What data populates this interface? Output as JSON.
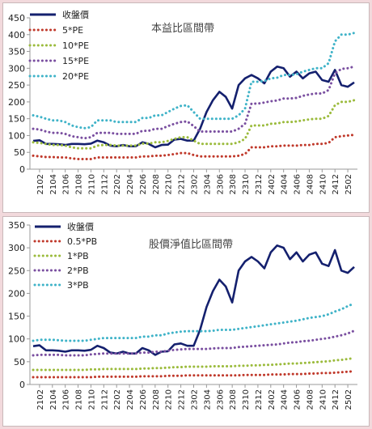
{
  "chart_data": [
    {
      "type": "line",
      "title": "本益比區間帶",
      "xlabel": "",
      "ylabel": "",
      "ylim": [
        0,
        450
      ],
      "yticks": [
        0,
        50,
        100,
        150,
        200,
        250,
        300,
        350,
        400,
        450
      ],
      "x_tick_labels": [
        "2102",
        "2104",
        "2106",
        "2108",
        "2110",
        "2112",
        "2202",
        "2204",
        "2206",
        "2208",
        "2210",
        "2212",
        "2302",
        "2304",
        "2306",
        "2308",
        "2310",
        "2312",
        "2402",
        "2404",
        "2406",
        "2408",
        "2410",
        "2412",
        "2502"
      ],
      "grid": false,
      "legend_position": "top-left",
      "x": [
        "2101",
        "2102",
        "2103",
        "2104",
        "2105",
        "2106",
        "2107",
        "2108",
        "2109",
        "2110",
        "2111",
        "2112",
        "2201",
        "2202",
        "2203",
        "2204",
        "2205",
        "2206",
        "2207",
        "2208",
        "2209",
        "2210",
        "2211",
        "2212",
        "2301",
        "2302",
        "2303",
        "2304",
        "2305",
        "2306",
        "2307",
        "2308",
        "2309",
        "2310",
        "2311",
        "2312",
        "2401",
        "2402",
        "2403",
        "2404",
        "2405",
        "2406",
        "2407",
        "2408",
        "2409",
        "2410",
        "2411",
        "2412",
        "2501",
        "2502",
        "2503"
      ],
      "series": [
        {
          "name": "收盤價",
          "color": "#14206e",
          "style": "solid",
          "values": [
            84,
            86,
            75,
            75,
            74,
            72,
            75,
            75,
            74,
            76,
            85,
            80,
            70,
            68,
            72,
            68,
            68,
            80,
            75,
            65,
            72,
            73,
            88,
            90,
            85,
            85,
            120,
            170,
            205,
            230,
            215,
            180,
            250,
            270,
            280,
            270,
            255,
            290,
            305,
            300,
            275,
            290,
            270,
            285,
            290,
            265,
            260,
            295,
            250,
            245,
            258
          ]
        },
        {
          "name": "5*PE",
          "color": "#c0392b",
          "style": "dotted",
          "values": [
            40,
            38,
            36,
            36,
            35,
            35,
            32,
            30,
            30,
            30,
            35,
            35,
            35,
            35,
            35,
            35,
            35,
            38,
            38,
            40,
            40,
            42,
            45,
            48,
            48,
            42,
            38,
            38,
            38,
            38,
            38,
            38,
            40,
            45,
            65,
            65,
            65,
            68,
            68,
            70,
            70,
            70,
            72,
            72,
            75,
            75,
            78,
            95,
            98,
            100,
            102
          ]
        },
        {
          "name": "10*PE",
          "color": "#9bbb3c",
          "style": "dotted",
          "values": [
            80,
            78,
            75,
            72,
            72,
            70,
            65,
            62,
            62,
            62,
            70,
            72,
            72,
            70,
            70,
            70,
            70,
            76,
            76,
            80,
            80,
            84,
            90,
            95,
            95,
            85,
            75,
            75,
            75,
            75,
            75,
            75,
            80,
            90,
            130,
            130,
            130,
            135,
            136,
            140,
            140,
            142,
            145,
            148,
            150,
            150,
            158,
            190,
            200,
            200,
            205
          ]
        },
        {
          "name": "15*PE",
          "color": "#7a4fa0",
          "style": "dotted",
          "values": [
            120,
            118,
            112,
            108,
            108,
            105,
            98,
            95,
            92,
            95,
            108,
            108,
            108,
            105,
            105,
            105,
            105,
            114,
            114,
            120,
            120,
            128,
            135,
            140,
            142,
            128,
            112,
            112,
            112,
            112,
            112,
            112,
            120,
            135,
            195,
            195,
            198,
            202,
            204,
            210,
            210,
            212,
            218,
            222,
            225,
            225,
            235,
            285,
            298,
            300,
            305
          ]
        },
        {
          "name": "20*PE",
          "color": "#3fb3c8",
          "style": "dotted",
          "values": [
            160,
            156,
            150,
            145,
            145,
            140,
            130,
            125,
            122,
            125,
            145,
            145,
            145,
            140,
            140,
            140,
            140,
            152,
            152,
            160,
            160,
            170,
            180,
            188,
            190,
            170,
            150,
            150,
            150,
            150,
            150,
            150,
            160,
            180,
            260,
            260,
            262,
            270,
            272,
            280,
            280,
            282,
            290,
            295,
            300,
            300,
            315,
            380,
            400,
            400,
            405
          ]
        }
      ]
    },
    {
      "type": "line",
      "title": "股價淨值比區間帶",
      "xlabel": "",
      "ylabel": "",
      "ylim": [
        0,
        350
      ],
      "yticks": [
        0,
        50,
        100,
        150,
        200,
        250,
        300,
        350
      ],
      "x_tick_labels": [
        "2102",
        "2104",
        "2106",
        "2108",
        "2110",
        "2112",
        "2202",
        "2204",
        "2206",
        "2208",
        "2210",
        "2212",
        "2302",
        "2304",
        "2306",
        "2308",
        "2310",
        "2312",
        "2402",
        "2404",
        "2406",
        "2408",
        "2410",
        "2412",
        "2502"
      ],
      "grid": false,
      "legend_position": "top-left",
      "x": [
        "2101",
        "2102",
        "2103",
        "2104",
        "2105",
        "2106",
        "2107",
        "2108",
        "2109",
        "2110",
        "2111",
        "2112",
        "2201",
        "2202",
        "2203",
        "2204",
        "2205",
        "2206",
        "2207",
        "2208",
        "2209",
        "2210",
        "2211",
        "2212",
        "2301",
        "2302",
        "2303",
        "2304",
        "2305",
        "2306",
        "2307",
        "2308",
        "2309",
        "2310",
        "2311",
        "2312",
        "2401",
        "2402",
        "2403",
        "2404",
        "2405",
        "2406",
        "2407",
        "2408",
        "2409",
        "2410",
        "2411",
        "2412",
        "2501",
        "2502",
        "2503"
      ],
      "series": [
        {
          "name": "收盤價",
          "color": "#14206e",
          "style": "solid",
          "values": [
            84,
            86,
            75,
            75,
            74,
            72,
            75,
            75,
            74,
            76,
            85,
            80,
            70,
            68,
            72,
            68,
            68,
            80,
            75,
            65,
            72,
            73,
            88,
            90,
            85,
            85,
            120,
            170,
            205,
            230,
            215,
            180,
            250,
            270,
            280,
            270,
            255,
            290,
            305,
            300,
            275,
            290,
            270,
            285,
            290,
            265,
            260,
            295,
            250,
            245,
            258
          ]
        },
        {
          "name": "0.5*PB",
          "color": "#c0392b",
          "style": "dotted",
          "values": [
            16,
            16,
            16,
            16,
            16,
            16,
            16,
            16,
            16,
            16,
            17,
            17,
            17,
            17,
            17,
            17,
            17,
            18,
            18,
            18,
            18,
            19,
            19,
            19,
            20,
            20,
            20,
            20,
            20,
            20,
            20,
            20,
            20,
            21,
            21,
            21,
            21,
            22,
            22,
            22,
            23,
            23,
            23,
            24,
            24,
            25,
            25,
            26,
            27,
            28,
            29
          ]
        },
        {
          "name": "1*PB",
          "color": "#9bbb3c",
          "style": "dotted",
          "values": [
            32,
            32,
            32,
            32,
            32,
            32,
            32,
            32,
            32,
            33,
            33,
            34,
            34,
            34,
            34,
            34,
            34,
            35,
            35,
            36,
            36,
            37,
            38,
            38,
            39,
            39,
            39,
            39,
            40,
            40,
            40,
            40,
            41,
            41,
            42,
            42,
            43,
            43,
            44,
            45,
            46,
            46,
            47,
            48,
            49,
            50,
            51,
            53,
            54,
            56,
            58
          ]
        },
        {
          "name": "2*PB",
          "color": "#7a4fa0",
          "style": "dotted",
          "values": [
            64,
            65,
            65,
            65,
            65,
            64,
            64,
            64,
            64,
            66,
            67,
            68,
            68,
            68,
            68,
            68,
            68,
            70,
            70,
            72,
            72,
            74,
            76,
            77,
            78,
            78,
            78,
            78,
            79,
            80,
            80,
            80,
            82,
            83,
            84,
            85,
            86,
            87,
            88,
            90,
            92,
            93,
            95,
            96,
            98,
            100,
            102,
            105,
            108,
            112,
            118
          ]
        },
        {
          "name": "3*PB",
          "color": "#3fb3c8",
          "style": "dotted",
          "values": [
            96,
            98,
            98,
            98,
            97,
            96,
            96,
            96,
            96,
            98,
            100,
            102,
            102,
            102,
            102,
            102,
            102,
            105,
            105,
            108,
            108,
            112,
            114,
            116,
            117,
            117,
            117,
            117,
            118,
            120,
            120,
            120,
            122,
            124,
            126,
            128,
            130,
            132,
            134,
            136,
            138,
            140,
            143,
            146,
            148,
            150,
            154,
            160,
            165,
            172,
            178
          ]
        }
      ]
    }
  ]
}
